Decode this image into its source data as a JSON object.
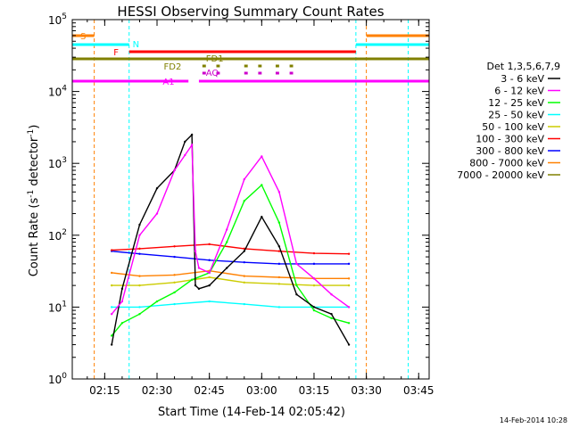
{
  "title": "HESSI Observing Summary Count Rates",
  "footer_date": "14-Feb-2014 10:28",
  "chart_data": {
    "type": "line",
    "title": "HESSI Observing Summary Count Rates",
    "xlabel": "Start Time (14-Feb-14 02:05:42)",
    "ylabel": "Count Rate (s⁻¹ detector⁻¹)",
    "ylabel_base": "Count Rate (s",
    "ylabel_mid": " detector",
    "ylabel_end": ")",
    "ylabel_sup": "-1",
    "yscale": "log",
    "xlim": [
      "02:05:42",
      "03:48:00"
    ],
    "ylim": [
      1,
      100000
    ],
    "x_ticks": [
      "02:15",
      "02:30",
      "02:45",
      "03:00",
      "03:15",
      "03:30",
      "03:45"
    ],
    "y_ticks": [
      {
        "base": "10",
        "exp": "0",
        "value": 1
      },
      {
        "base": "10",
        "exp": "1",
        "value": 10
      },
      {
        "base": "10",
        "exp": "2",
        "value": 100
      },
      {
        "base": "10",
        "exp": "3",
        "value": 1000
      },
      {
        "base": "10",
        "exp": "4",
        "value": 10000
      },
      {
        "base": "10",
        "exp": "5",
        "value": 100000
      }
    ],
    "legend_title": "Det 1,3,5,6,7,9",
    "legend_placement": "right",
    "series": [
      {
        "name": "3 - 6 keV",
        "color": "#000000",
        "x": [
          "02:17",
          "02:20",
          "02:25",
          "02:30",
          "02:35",
          "02:38",
          "02:40",
          "02:41",
          "02:42",
          "02:45",
          "02:50",
          "02:55",
          "03:00",
          "03:05",
          "03:10",
          "03:15",
          "03:20",
          "03:25"
        ],
        "y": [
          3,
          18,
          140,
          450,
          800,
          2000,
          2500,
          20,
          18,
          20,
          35,
          60,
          180,
          70,
          15,
          10,
          8,
          3
        ]
      },
      {
        "name": "6 - 12 keV",
        "color": "#ff00ff",
        "x": [
          "02:17",
          "02:20",
          "02:25",
          "02:30",
          "02:35",
          "02:38",
          "02:40",
          "02:41",
          "02:42",
          "02:45",
          "02:50",
          "02:55",
          "03:00",
          "03:05",
          "03:10",
          "03:15",
          "03:20",
          "03:25"
        ],
        "y": [
          8,
          12,
          100,
          200,
          800,
          1300,
          1800,
          60,
          35,
          30,
          120,
          600,
          1250,
          400,
          40,
          25,
          15,
          10
        ]
      },
      {
        "name": "12 - 25 keV",
        "color": "#00ff00",
        "x": [
          "02:17",
          "02:20",
          "02:25",
          "02:30",
          "02:35",
          "02:40",
          "02:45",
          "02:50",
          "02:55",
          "03:00",
          "03:05",
          "03:10",
          "03:15",
          "03:20",
          "03:25"
        ],
        "y": [
          4,
          6,
          8,
          12,
          16,
          24,
          30,
          80,
          300,
          500,
          150,
          20,
          9,
          7,
          6
        ]
      },
      {
        "name": "25 - 50 keV",
        "color": "#00ffff",
        "x": [
          "02:17",
          "02:25",
          "02:35",
          "02:45",
          "02:55",
          "03:05",
          "03:15",
          "03:25"
        ],
        "y": [
          10,
          10,
          11,
          12,
          11,
          10,
          10,
          10
        ]
      },
      {
        "name": "50 - 100 keV",
        "color": "#cccc00",
        "x": [
          "02:17",
          "02:25",
          "02:35",
          "02:45",
          "02:55",
          "03:05",
          "03:15",
          "03:25"
        ],
        "y": [
          20,
          20,
          22,
          26,
          22,
          21,
          20,
          20
        ]
      },
      {
        "name": "100 - 300 keV",
        "color": "#ff0000",
        "x": [
          "02:17",
          "02:25",
          "02:35",
          "02:45",
          "02:55",
          "03:05",
          "03:15",
          "03:25"
        ],
        "y": [
          62,
          65,
          70,
          75,
          65,
          60,
          56,
          55
        ]
      },
      {
        "name": "300 - 800 keV",
        "color": "#0000ff",
        "x": [
          "02:17",
          "02:25",
          "02:35",
          "02:45",
          "02:55",
          "03:05",
          "03:15",
          "03:25"
        ],
        "y": [
          60,
          55,
          50,
          45,
          42,
          40,
          40,
          40
        ]
      },
      {
        "name": "800 - 7000 keV",
        "color": "#ff8000",
        "x": [
          "02:17",
          "02:25",
          "02:35",
          "02:45",
          "02:55",
          "03:05",
          "03:15",
          "03:25"
        ],
        "y": [
          30,
          27,
          28,
          32,
          27,
          26,
          25,
          25
        ]
      },
      {
        "name": "7000 - 20000 keV",
        "color": "#808000",
        "x": [],
        "y": []
      }
    ],
    "flag_bars": [
      {
        "label": "S",
        "color": "#ff8000",
        "segments": [
          [
            "02:05:42",
            "02:12"
          ],
          [
            "03:30",
            "03:48"
          ]
        ]
      },
      {
        "label": "N",
        "color": "#00ffff",
        "segments": [
          [
            "02:05:42",
            "02:22"
          ],
          [
            "03:27",
            "03:48"
          ]
        ]
      },
      {
        "label": "F",
        "color": "#ff0000",
        "segments": [
          [
            "02:22",
            "03:27"
          ]
        ]
      },
      {
        "label": "FD1",
        "color": "#808000",
        "segments": [
          [
            "02:05:42",
            "03:48"
          ]
        ]
      },
      {
        "label": "FD2",
        "color": "#808000",
        "segments": [
          [
            "02:43",
            "02:44"
          ],
          [
            "02:47",
            "02:48"
          ],
          [
            "02:55",
            "02:56"
          ],
          [
            "02:59",
            "03:00"
          ],
          [
            "03:04",
            "03:05"
          ],
          [
            "03:08",
            "03:09"
          ]
        ]
      },
      {
        "label": "AQ",
        "color": "#cc00cc",
        "segments": [
          [
            "02:43",
            "02:44"
          ],
          [
            "02:47",
            "02:48"
          ],
          [
            "02:55",
            "02:56"
          ],
          [
            "02:59",
            "03:00"
          ],
          [
            "03:04",
            "03:05"
          ],
          [
            "03:08",
            "03:09"
          ]
        ]
      },
      {
        "label": "A1",
        "color": "#ff00ff",
        "segments": [
          [
            "02:05:42",
            "02:39"
          ],
          [
            "02:42",
            "03:48"
          ]
        ]
      }
    ],
    "event_lines": [
      {
        "time": "02:12",
        "color": "#ff8000"
      },
      {
        "time": "02:22",
        "color": "#00ffff"
      },
      {
        "time": "03:27",
        "color": "#00ffff"
      },
      {
        "time": "03:30",
        "color": "#ff8000"
      },
      {
        "time": "03:42",
        "color": "#00ffff"
      }
    ]
  }
}
